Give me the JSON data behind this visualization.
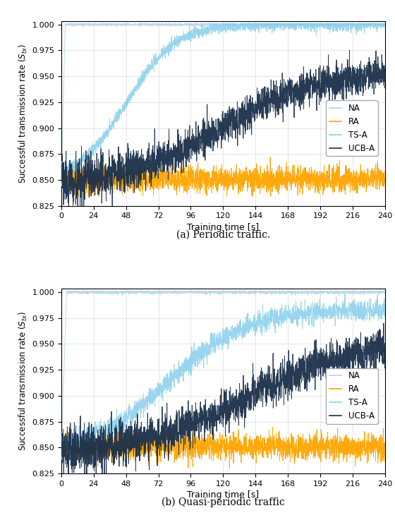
{
  "colors": {
    "NA": "#b0d4e8",
    "RA": "#FFA500",
    "TS_A": "#87CEEB",
    "UCB_A": "#1a2f4a"
  },
  "xlim": [
    0,
    240
  ],
  "xticks": [
    0,
    24,
    48,
    72,
    96,
    120,
    144,
    168,
    192,
    216,
    240
  ],
  "ylim": [
    0.825,
    1.003
  ],
  "yticks": [
    0.825,
    0.85,
    0.875,
    0.9,
    0.925,
    0.95,
    0.975,
    1.0
  ],
  "xlabel": "Training time [s]",
  "ylabel": "Successful transmission rate ($S_{tx}$)",
  "legend_labels": [
    "NA",
    "RA",
    "TS-A",
    "UCB-A"
  ],
  "caption_a": "(a) Periodic traffic.",
  "caption_b": "(b) Quasi-periodic traffic",
  "n_points": 2400
}
